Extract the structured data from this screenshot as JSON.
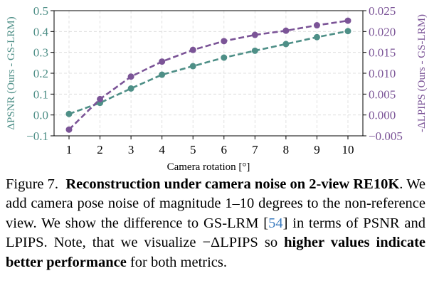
{
  "chart_data": {
    "type": "line",
    "x": [
      1,
      2,
      3,
      4,
      5,
      6,
      7,
      8,
      9,
      10
    ],
    "xlabel": "Camera rotation [°]",
    "xticks": [
      "1",
      "2",
      "3",
      "4",
      "5",
      "6",
      "7",
      "8",
      "9",
      "10"
    ],
    "grid": true,
    "series": [
      {
        "name": "ΔPSNR (Ours - GS-LRM)",
        "axis": "left",
        "color": "#4e8f87",
        "values": [
          0.005,
          0.058,
          0.127,
          0.193,
          0.234,
          0.275,
          0.308,
          0.34,
          0.373,
          0.402
        ]
      },
      {
        "name": "-ΔLPIPS (Ours - GS-LRM)",
        "axis": "right",
        "color": "#7b5497",
        "values": [
          -0.0035,
          0.0038,
          0.0092,
          0.0128,
          0.0156,
          0.0177,
          0.0192,
          0.0202,
          0.0215,
          0.0226
        ]
      }
    ],
    "ylabel_left": "ΔPSNR (Ours - GS-LRM)",
    "ylim_left": [
      -0.1,
      0.5
    ],
    "yticks_left": [
      "−0.1",
      "0.0",
      "0.1",
      "0.2",
      "0.3",
      "0.4",
      "0.5"
    ],
    "ylabel_right": "-ΔLPIPS (Ours - GS-LRM)",
    "ylim_right": [
      -0.005,
      0.025
    ],
    "yticks_right": [
      "−0.005",
      "0.000",
      "0.005",
      "0.010",
      "0.015",
      "0.020",
      "0.025"
    ]
  },
  "caption": {
    "figure_label": "Figure 7.",
    "bold_title": "Reconstruction under camera noise on 2-view RE10K",
    "text_1": ". We add camera pose noise of magnitude 1–10 degrees to the non-reference view. We show the difference to GS-LRM [",
    "citation": "54",
    "text_2": "] in terms of PSNR and LPIPS. Note, that we visualize −ΔLPIPS so ",
    "bold_emphasis": "higher values indicate better performance",
    "text_3": " for both metrics."
  }
}
